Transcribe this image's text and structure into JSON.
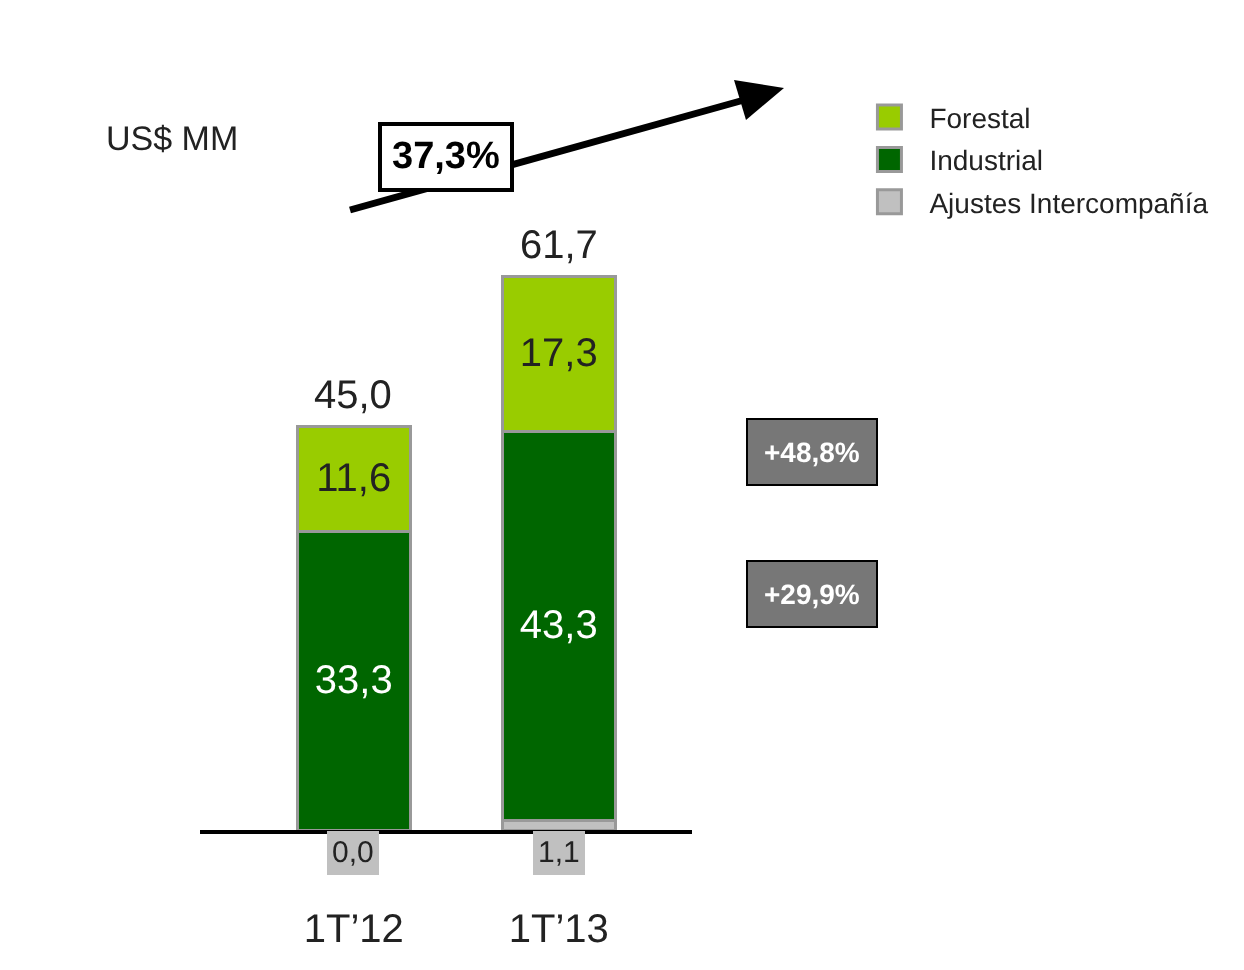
{
  "chart_data": {
    "type": "bar",
    "stacked": true,
    "ylabel": "US$ MM",
    "categories": [
      "1T’12",
      "1T’13"
    ],
    "series": [
      {
        "name": "Ajustes Intercompañía",
        "color": "#c0c0c0",
        "values": [
          0.0,
          1.1
        ],
        "value_labels": [
          "0,0",
          "1,1"
        ]
      },
      {
        "name": "Industrial",
        "color": "#006600",
        "values": [
          33.3,
          43.3
        ],
        "value_labels": [
          "33,3",
          "43,3"
        ]
      },
      {
        "name": "Forestal",
        "color": "#99cc00",
        "values": [
          11.6,
          17.3
        ],
        "value_labels": [
          "11,6",
          "17,3"
        ]
      }
    ],
    "totals": [
      "45,0",
      "61,7"
    ],
    "annotations": [
      "37,3%",
      "+48,8%",
      "+29,9%"
    ],
    "legend": "top right",
    "tick_labels": "x"
  }
}
